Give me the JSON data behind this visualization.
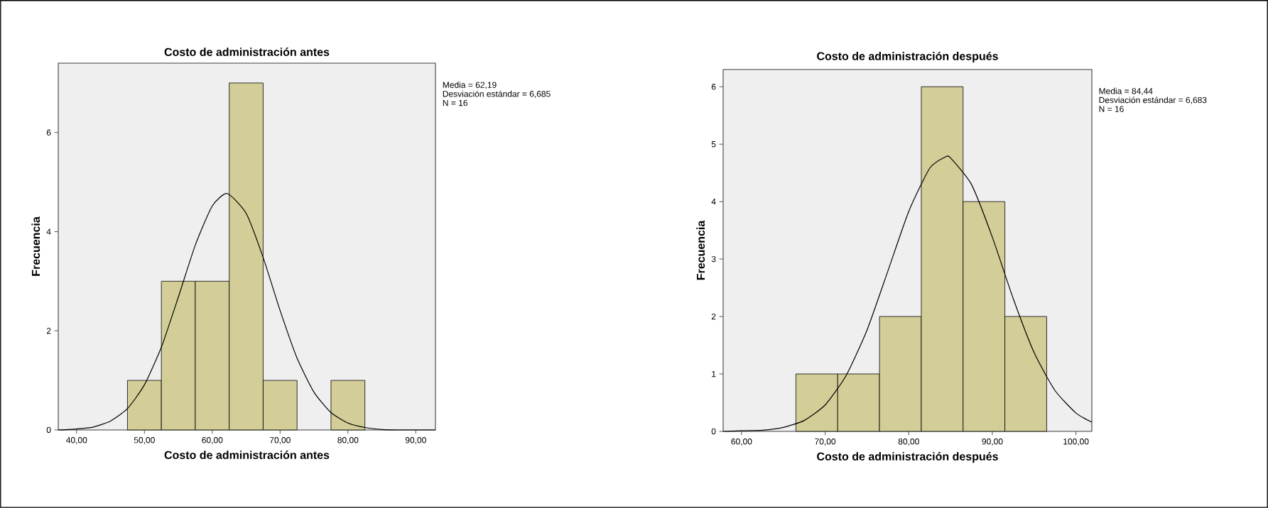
{
  "chart_data": [
    {
      "type": "histogram",
      "title": "Costo de administración antes",
      "xlabel": "Costo de administración antes",
      "ylabel": "Frecuencia",
      "annotations": [
        "Media = 62,19",
        "Desviación estándar = 6,685",
        "N = 16"
      ],
      "xlim": [
        37.3,
        92.9
      ],
      "ylim": [
        0,
        7.4
      ],
      "xticks": [
        {
          "value": 40,
          "label": "40,00"
        },
        {
          "value": 50,
          "label": "50,00"
        },
        {
          "value": 60,
          "label": "60,00"
        },
        {
          "value": 70,
          "label": "70,00"
        },
        {
          "value": 80,
          "label": "80,00"
        },
        {
          "value": 90,
          "label": "90,00"
        }
      ],
      "yticks": [
        0,
        2,
        4,
        6
      ],
      "series": [
        {
          "type": "histogram",
          "color": "#d3ce97",
          "bins": [
            47.5,
            52.5,
            57.5,
            62.5,
            67.5,
            72.5,
            77.5,
            82.5
          ],
          "values": [
            1,
            3,
            3,
            7,
            1,
            0,
            1
          ]
        },
        {
          "type": "line",
          "color": "#000000",
          "x": [
            37.3,
            40,
            42.5,
            45,
            47.5,
            50,
            52.5,
            55,
            57.5,
            60,
            62.2,
            65,
            67.5,
            70,
            72.5,
            75,
            77.5,
            80,
            82.5,
            85,
            87.5,
            90,
            92.9
          ],
          "values": [
            0.0,
            0.02,
            0.06,
            0.18,
            0.43,
            0.91,
            1.67,
            2.68,
            3.73,
            4.52,
            4.77,
            4.37,
            3.48,
            2.41,
            1.45,
            0.76,
            0.35,
            0.14,
            0.05,
            0.01,
            0.0,
            0.0,
            0.0
          ]
        }
      ]
    },
    {
      "type": "histogram",
      "title": "Costo de administración  después",
      "xlabel": "Costo de administración  después",
      "ylabel": "Frecuencia",
      "annotations": [
        "Media = 84,44",
        "Desviación estándar = 6,683",
        "N = 16"
      ],
      "xlim": [
        57.8,
        101.9
      ],
      "ylim": [
        0,
        6.3
      ],
      "xticks": [
        {
          "value": 60,
          "label": "60,00"
        },
        {
          "value": 70,
          "label": "70,00"
        },
        {
          "value": 80,
          "label": "80,00"
        },
        {
          "value": 90,
          "label": "90,00"
        },
        {
          "value": 100,
          "label": "100,00"
        }
      ],
      "yticks": [
        0,
        1,
        2,
        3,
        4,
        5,
        6
      ],
      "series": [
        {
          "type": "histogram",
          "color": "#d3ce97",
          "bins": [
            66.5,
            71.5,
            76.5,
            81.5,
            86.5,
            91.5,
            96.5
          ],
          "values": [
            1,
            1,
            2,
            6,
            4,
            2
          ]
        },
        {
          "type": "line",
          "color": "#000000",
          "x": [
            57.8,
            60,
            62.5,
            65,
            67.5,
            70,
            72.5,
            75,
            77.5,
            80,
            82.5,
            84.4,
            85,
            87.5,
            90,
            92.5,
            95,
            97.5,
            100,
            101.9
          ],
          "values": [
            0.0,
            0.01,
            0.02,
            0.07,
            0.19,
            0.46,
            0.97,
            1.76,
            2.79,
            3.83,
            4.58,
            4.78,
            4.76,
            4.3,
            3.38,
            2.31,
            1.37,
            0.71,
            0.32,
            0.16
          ]
        }
      ]
    }
  ]
}
